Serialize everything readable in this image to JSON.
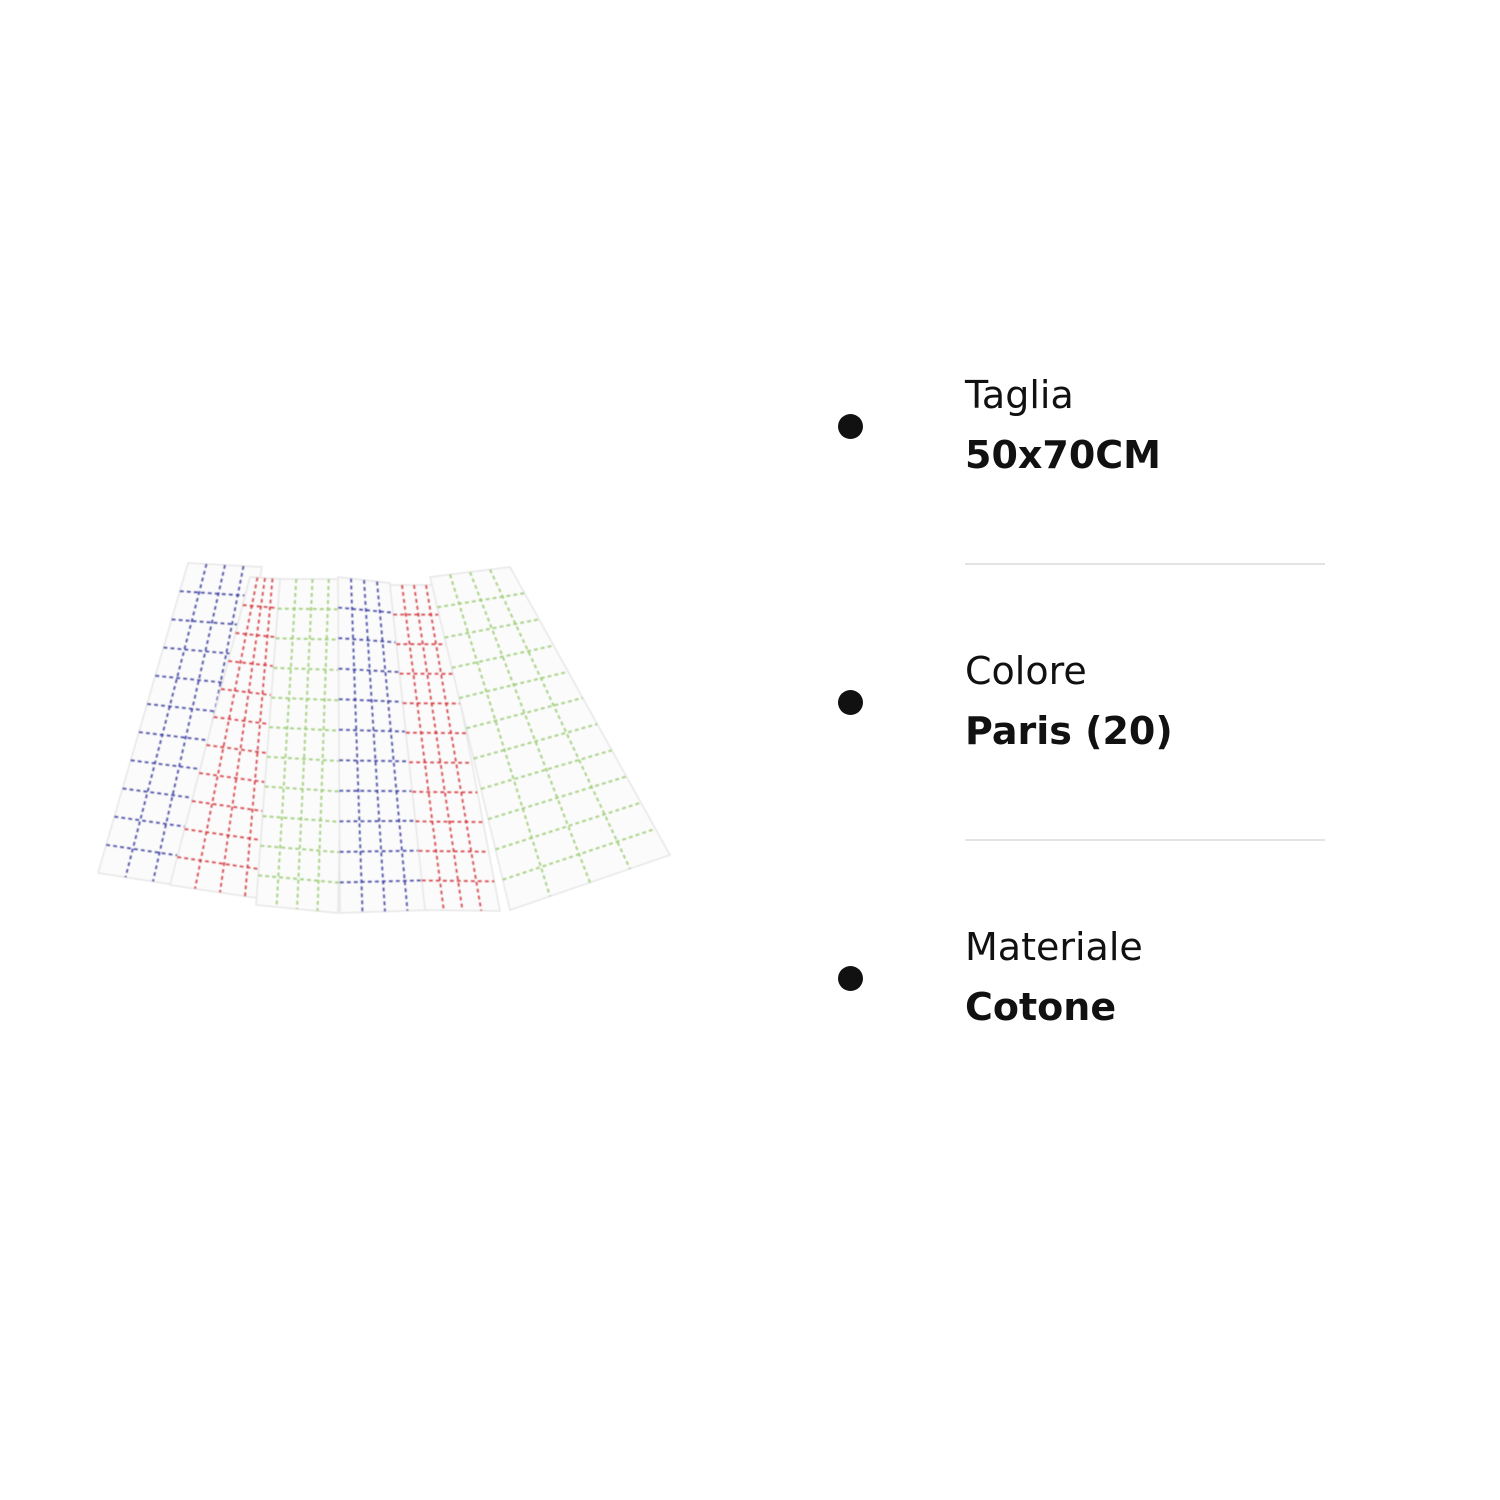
{
  "product": {
    "image_icon": "checkered-dish-towels-image",
    "towel_colors": [
      "#3b3fa8",
      "#d8343c",
      "#9fcf74",
      "#3b3fa8",
      "#d8343c",
      "#9fcf74"
    ]
  },
  "attributes": [
    {
      "label": "Taglia",
      "value": "50x70CM"
    },
    {
      "label": "Colore",
      "value": "Paris (20)"
    },
    {
      "label": "Materiale",
      "value": "Cotone"
    }
  ]
}
